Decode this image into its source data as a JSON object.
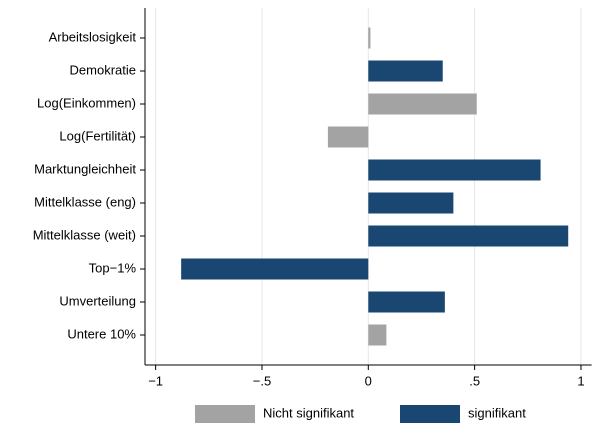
{
  "chart_data": {
    "type": "bar",
    "orientation": "horizontal",
    "categories": [
      "Arbeitslosigkeit",
      "Demokratie",
      "Log(Einkommen)",
      "Log(Fertilität)",
      "Marktungleichheit",
      "Mittelklasse (eng)",
      "Mittelklasse (weit)",
      "Top−1%",
      "Umverteilung",
      "Untere 10%"
    ],
    "series": [
      {
        "name": "Nicht signifikant",
        "color": "#a3a3a3",
        "values": [
          0.01,
          null,
          0.51,
          -0.19,
          null,
          null,
          null,
          null,
          null,
          0.085
        ]
      },
      {
        "name": "signifikant",
        "color": "#1a4672",
        "values": [
          null,
          0.35,
          null,
          null,
          0.81,
          0.4,
          0.94,
          -0.88,
          0.36,
          null
        ]
      }
    ],
    "xlim": [
      -1.05,
      1.05
    ],
    "xticks": [
      {
        "value": -1,
        "label": "−1"
      },
      {
        "value": -0.5,
        "label": "−.5"
      },
      0,
      {
        "value": 0.5,
        "label": ".5"
      },
      {
        "value": 1,
        "label": "1"
      }
    ],
    "grid": true,
    "legend": "bottom"
  }
}
